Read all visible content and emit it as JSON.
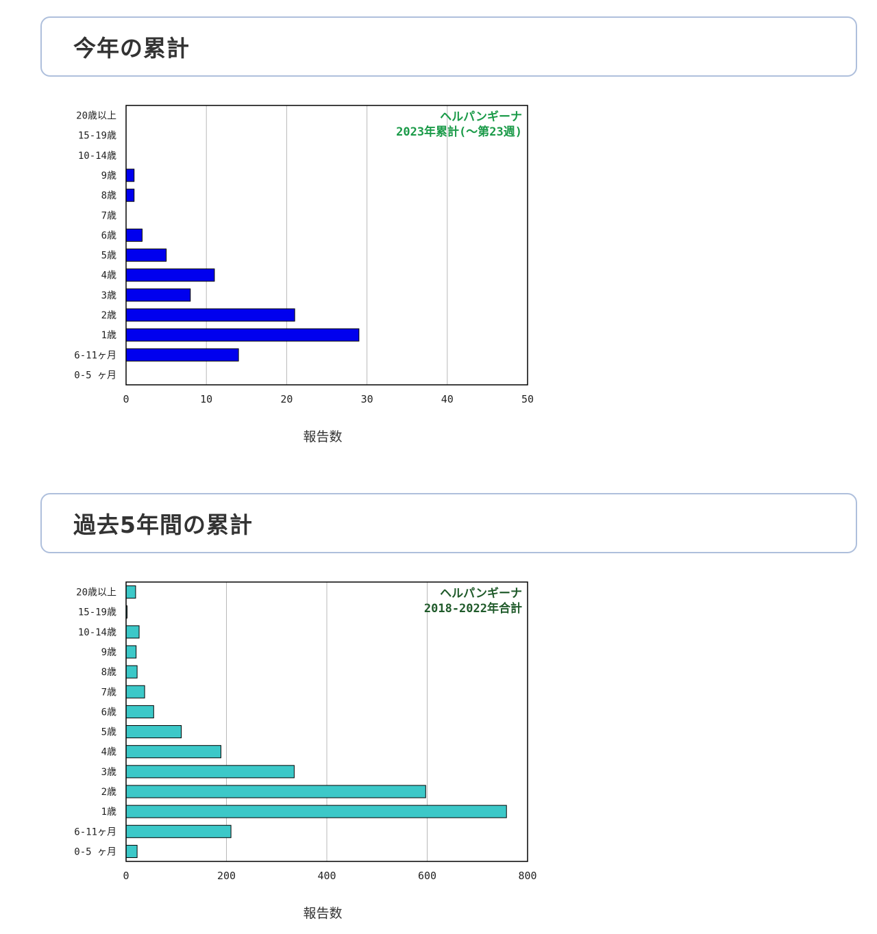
{
  "sections": [
    {
      "heading": "今年の累計",
      "chart_data": {
        "type": "bar",
        "orientation": "horizontal",
        "annotation": [
          "ヘルパンギーナ",
          "2023年累計(〜第23週)"
        ],
        "annotation_color": "#1a9a48",
        "bar_color": "#0000ee",
        "categories": [
          "20歳以上",
          "15-19歳",
          "10-14歳",
          "9歳",
          "8歳",
          "7歳",
          "6歳",
          "5歳",
          "4歳",
          "3歳",
          "2歳",
          "1歳",
          "6-11ヶ月",
          "0-5 ヶ月"
        ],
        "values": [
          0,
          0,
          0,
          1,
          1,
          0,
          2,
          5,
          11,
          8,
          21,
          29,
          14,
          0
        ],
        "xlabel": "報告数",
        "xlim": [
          0,
          50
        ],
        "xticks": [
          "0",
          "10",
          "20",
          "30",
          "40",
          "50"
        ],
        "grid": true
      }
    },
    {
      "heading": "過去5年間の累計",
      "chart_data": {
        "type": "bar",
        "orientation": "horizontal",
        "annotation": [
          "ヘルパンギーナ",
          "2018-2022年合計"
        ],
        "annotation_color": "#1f5a2a",
        "bar_color": "#3cc8c8",
        "categories": [
          "20歳以上",
          "15-19歳",
          "10-14歳",
          "9歳",
          "8歳",
          "7歳",
          "6歳",
          "5歳",
          "4歳",
          "3歳",
          "2歳",
          "1歳",
          "6-11ヶ月",
          "0-5 ヶ月"
        ],
        "values": [
          19,
          2,
          26,
          20,
          22,
          37,
          55,
          110,
          189,
          335,
          597,
          758,
          209,
          22
        ],
        "xlabel": "報告数",
        "xlim": [
          0,
          800
        ],
        "xticks": [
          "0",
          "200",
          "400",
          "600",
          "800"
        ],
        "grid": true
      }
    }
  ]
}
